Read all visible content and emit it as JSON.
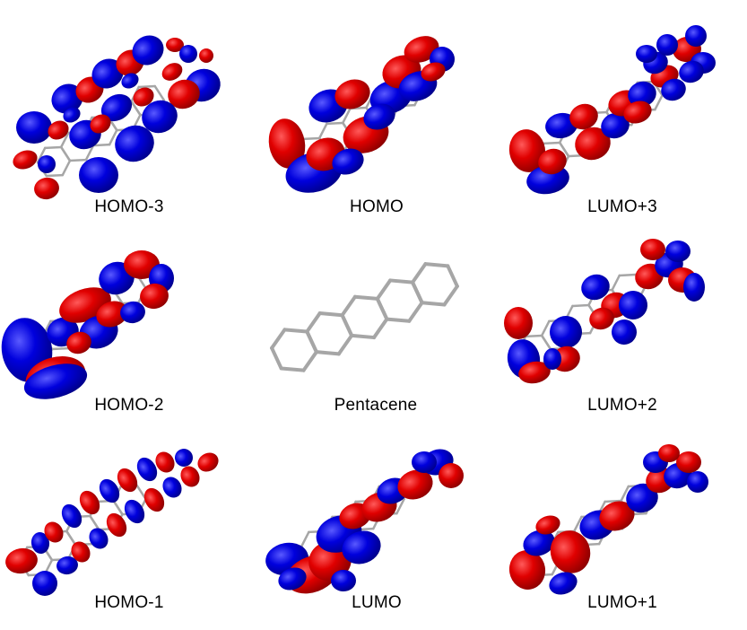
{
  "colors": {
    "positive_lobe": "#e00000",
    "negative_lobe": "#0000dd",
    "bond": "#a6a6a6",
    "label": "#000000"
  },
  "orbitals": [
    {
      "key": "homo3",
      "label": "HOMO-3"
    },
    {
      "key": "homo",
      "label": "HOMO"
    },
    {
      "key": "lumo3",
      "label": "LUMO+3"
    },
    {
      "key": "homo2",
      "label": "HOMO-2"
    },
    {
      "key": "pentacene",
      "label": "Pentacene"
    },
    {
      "key": "lumo2",
      "label": "LUMO+2"
    },
    {
      "key": "homo1",
      "label": "HOMO-1"
    },
    {
      "key": "lumo",
      "label": "LUMO"
    },
    {
      "key": "lumo1",
      "label": "LUMO+1"
    }
  ]
}
